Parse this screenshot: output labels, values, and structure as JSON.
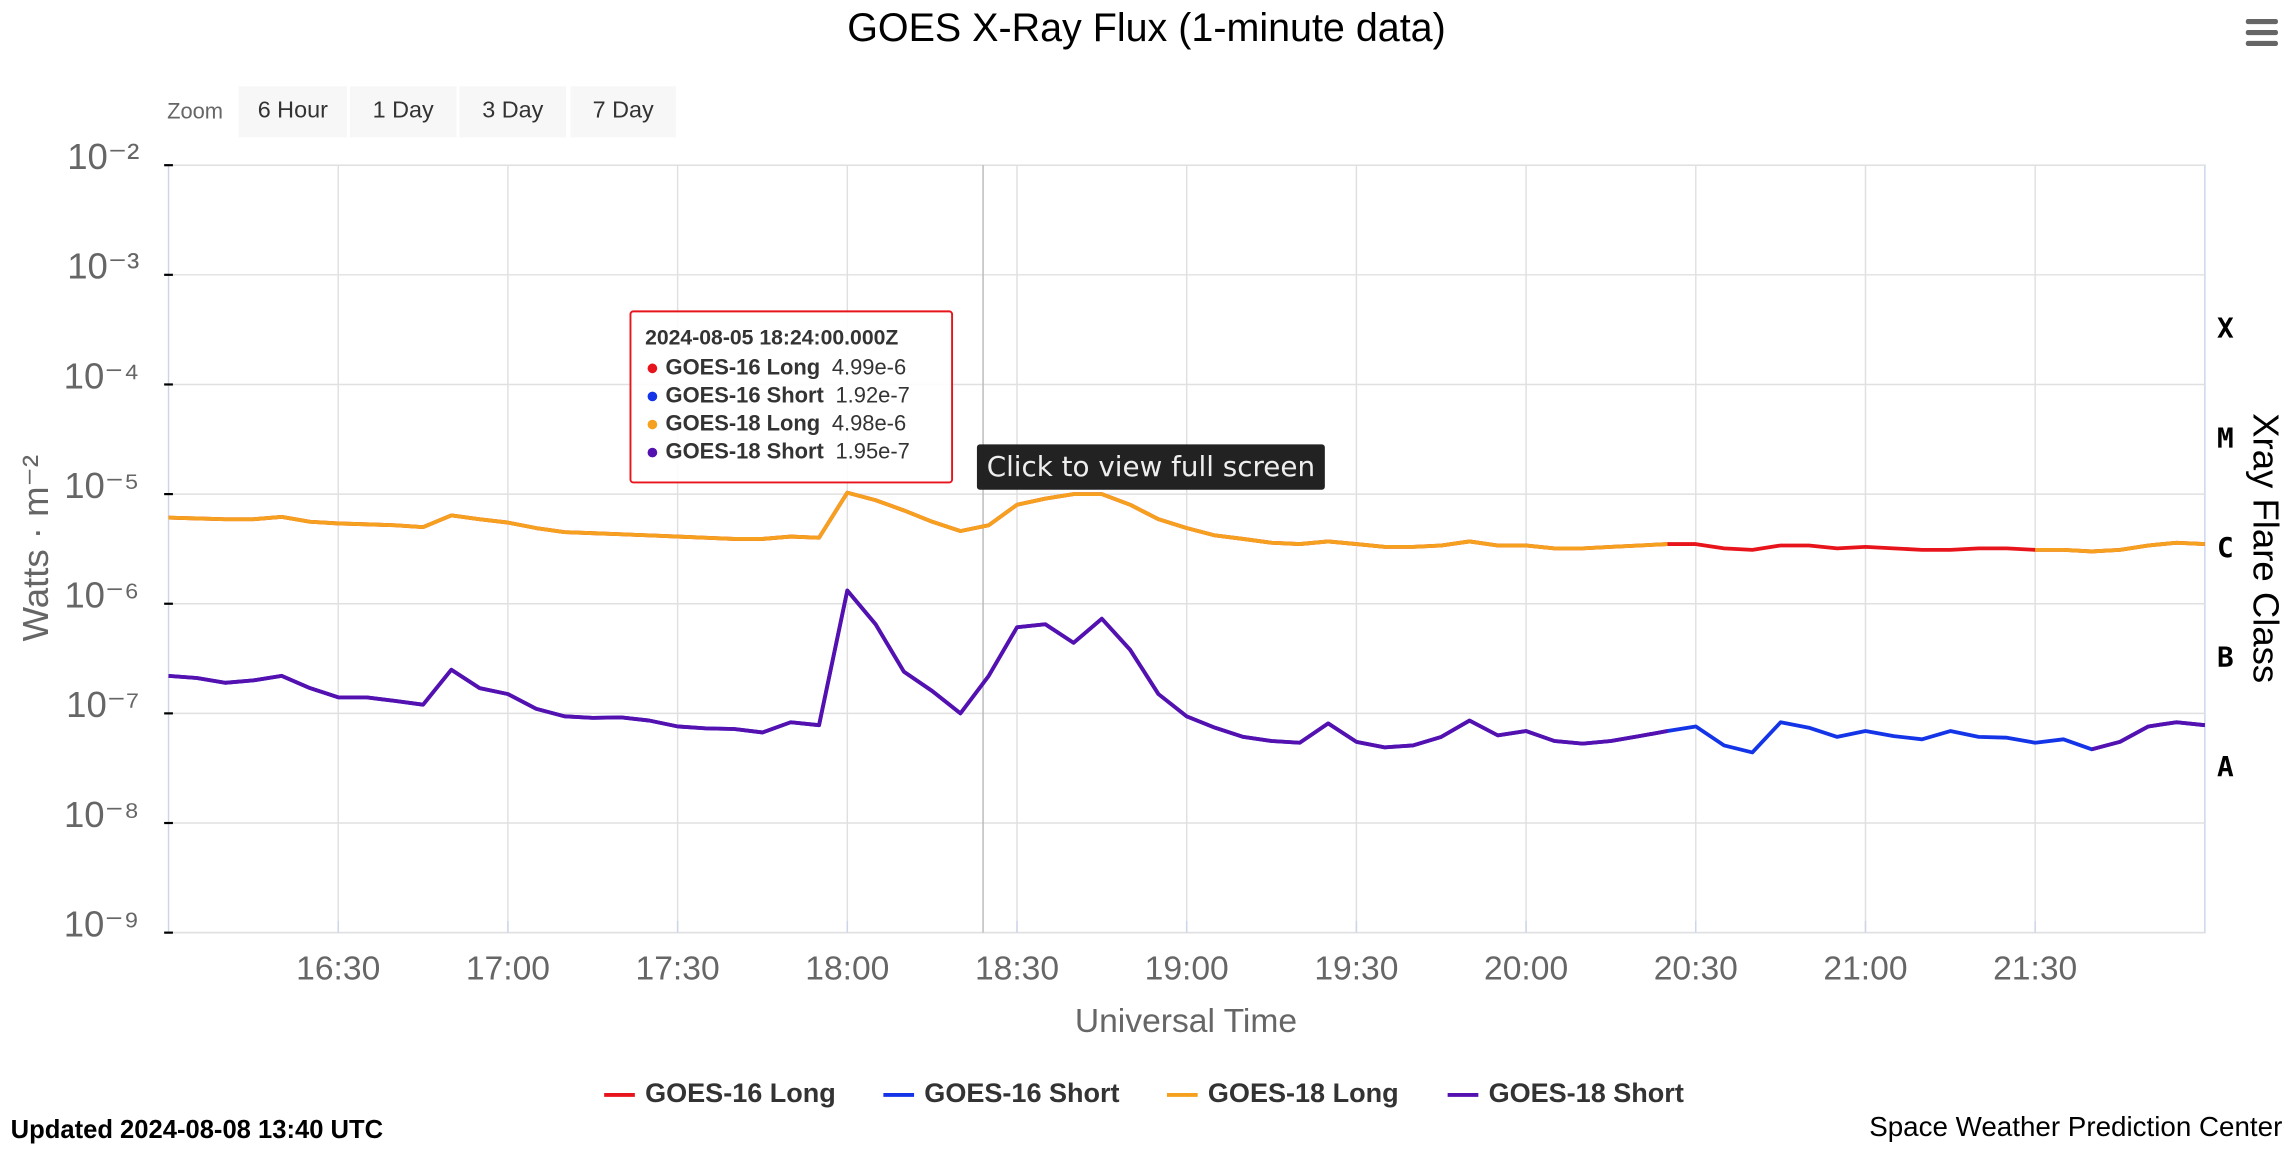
{
  "chart_data": {
    "type": "line",
    "title": "GOES X-Ray Flux (1-minute data)",
    "x_label": "Universal Time",
    "y_label": "Watts · m⁻²",
    "y2_label": "Xray Flare Class",
    "log_y": true,
    "grid": true,
    "xlim": [
      "16:00",
      "22:00"
    ],
    "xticks": [
      "16:30",
      "17:00",
      "17:30",
      "18:00",
      "18:30",
      "19:00",
      "19:30",
      "20:00",
      "20:30",
      "21:00",
      "21:30"
    ],
    "ylim": [
      1e-09,
      0.01
    ],
    "yticks": [
      {
        "value": 1e-09,
        "label": "10⁻⁹"
      },
      {
        "value": 1e-08,
        "label": "10⁻⁸"
      },
      {
        "value": 1e-07,
        "label": "10⁻⁷"
      },
      {
        "value": 1e-06,
        "label": "10⁻⁶"
      },
      {
        "value": 1e-05,
        "label": "10⁻⁵"
      },
      {
        "value": 0.0001,
        "label": "10⁻⁴"
      },
      {
        "value": 0.001,
        "label": "10⁻³"
      },
      {
        "value": 0.01,
        "label": "10⁻²"
      }
    ],
    "y2lim": [
      1e-09,
      0.01
    ],
    "y2ticks": [
      {
        "value": 1e-08,
        "label": "A"
      },
      {
        "value": 1e-07,
        "label": "B"
      },
      {
        "value": 1e-06,
        "label": "C"
      },
      {
        "value": 1e-05,
        "label": "M"
      },
      {
        "value": 0.0001,
        "label": "X"
      }
    ],
    "x": [
      "16:00",
      "16:05",
      "16:10",
      "16:15",
      "16:20",
      "16:25",
      "16:30",
      "16:35",
      "16:40",
      "16:45",
      "16:50",
      "16:55",
      "17:00",
      "17:05",
      "17:10",
      "17:15",
      "17:20",
      "17:25",
      "17:30",
      "17:35",
      "17:40",
      "17:45",
      "17:50",
      "17:55",
      "18:00",
      "18:05",
      "18:10",
      "18:15",
      "18:20",
      "18:25",
      "18:30",
      "18:35",
      "18:40",
      "18:45",
      "18:50",
      "18:55",
      "19:00",
      "19:05",
      "19:10",
      "19:15",
      "19:20",
      "19:25",
      "19:30",
      "19:35",
      "19:40",
      "19:45",
      "19:50",
      "19:55",
      "20:00",
      "20:05",
      "20:10",
      "20:15",
      "20:20",
      "20:25",
      "20:30",
      "20:35",
      "20:40",
      "20:45",
      "20:50",
      "20:55",
      "21:00",
      "21:05",
      "21:10",
      "21:15",
      "21:20",
      "21:25",
      "21:30",
      "21:35",
      "21:40",
      "21:45",
      "21:50",
      "21:55",
      "22:00"
    ],
    "series": [
      {
        "name": "GOES-16 Long",
        "color": "#e8141b",
        "values": [
          6.1e-06,
          6e-06,
          5.9e-06,
          5.9e-06,
          6.2e-06,
          5.6e-06,
          5.4e-06,
          5.3e-06,
          5.2e-06,
          5e-06,
          6.4e-06,
          5.9e-06,
          5.5e-06,
          4.9e-06,
          4.5e-06,
          4.4e-06,
          4.3e-06,
          4.2e-06,
          4.1e-06,
          4e-06,
          3.9e-06,
          3.9e-06,
          4.1e-06,
          4e-06,
          1.03e-05,
          8.8e-06,
          7.1e-06,
          5.6e-06,
          4.6e-06,
          5.2e-06,
          8e-06,
          9.1e-06,
          1e-05,
          1e-05,
          8e-06,
          5.9e-06,
          4.9e-06,
          4.2e-06,
          3.9e-06,
          3.6e-06,
          3.5e-06,
          3.7e-06,
          3.5e-06,
          3.3e-06,
          3.3e-06,
          3.4e-06,
          3.7e-06,
          3.4e-06,
          3.4e-06,
          3.2e-06,
          3.2e-06,
          3.3e-06,
          3.4e-06,
          3.5e-06,
          3.5e-06,
          3.2e-06,
          3.1e-06,
          3.4e-06,
          3.4e-06,
          3.2e-06,
          3.3e-06,
          3.2e-06,
          3.1e-06,
          3.1e-06,
          3.2e-06,
          3.2e-06,
          3.1e-06,
          3.1e-06,
          3e-06,
          3.1e-06,
          3.4e-06,
          3.6e-06,
          3.5e-06
        ]
      },
      {
        "name": "GOES-16 Short",
        "color": "#1434e8",
        "values": [
          2.2e-07,
          2.1e-07,
          1.9e-07,
          2e-07,
          2.2e-07,
          1.7e-07,
          1.4e-07,
          1.4e-07,
          1.3e-07,
          1.2e-07,
          2.5e-07,
          1.7e-07,
          1.5e-07,
          1.1e-07,
          9.4e-08,
          9.1e-08,
          9.2e-08,
          8.6e-08,
          7.6e-08,
          7.3e-08,
          7.2e-08,
          6.7e-08,
          8.3e-08,
          7.8e-08,
          1.32e-06,
          6.5e-07,
          2.4e-07,
          1.6e-07,
          1e-07,
          2.2e-07,
          6.1e-07,
          6.5e-07,
          4.4e-07,
          7.3e-07,
          3.8e-07,
          1.5e-07,
          9.4e-08,
          7.4e-08,
          6.1e-08,
          5.6e-08,
          5.4e-08,
          8.1e-08,
          5.5e-08,
          4.9e-08,
          5.1e-08,
          6.1e-08,
          8.6e-08,
          6.3e-08,
          6.9e-08,
          5.6e-08,
          5.3e-08,
          5.6e-08,
          6.2e-08,
          6.9e-08,
          7.6e-08,
          5.1e-08,
          4.4e-08,
          8.3e-08,
          7.4e-08,
          6.1e-08,
          6.9e-08,
          6.2e-08,
          5.8e-08,
          6.9e-08,
          6.1e-08,
          6e-08,
          5.4e-08,
          5.8e-08,
          4.7e-08,
          5.5e-08,
          7.6e-08,
          8.3e-08,
          7.8e-08
        ]
      },
      {
        "name": "GOES-18 Long",
        "color": "#f5a01f",
        "values": [
          6.1e-06,
          6e-06,
          5.9e-06,
          5.9e-06,
          6.2e-06,
          5.6e-06,
          5.4e-06,
          5.3e-06,
          5.2e-06,
          5e-06,
          6.4e-06,
          5.9e-06,
          5.5e-06,
          4.9e-06,
          4.5e-06,
          4.4e-06,
          4.3e-06,
          4.2e-06,
          4.1e-06,
          4e-06,
          3.9e-06,
          3.9e-06,
          4.1e-06,
          4e-06,
          1.03e-05,
          8.8e-06,
          7.1e-06,
          5.6e-06,
          4.6e-06,
          5.2e-06,
          8e-06,
          9.1e-06,
          1e-05,
          1e-05,
          8e-06,
          5.9e-06,
          4.9e-06,
          4.2e-06,
          3.9e-06,
          3.6e-06,
          3.5e-06,
          3.7e-06,
          3.5e-06,
          3.3e-06,
          3.3e-06,
          3.4e-06,
          3.7e-06,
          3.4e-06,
          3.4e-06,
          3.2e-06,
          3.2e-06,
          3.3e-06,
          3.4e-06,
          3.5e-06,
          null,
          null,
          null,
          null,
          null,
          null,
          null,
          null,
          null,
          null,
          null,
          null,
          3.1e-06,
          3.1e-06,
          3e-06,
          3.1e-06,
          3.4e-06,
          3.6e-06,
          3.5e-06
        ]
      },
      {
        "name": "GOES-18 Short",
        "color": "#5510b0",
        "values": [
          2.2e-07,
          2.1e-07,
          1.9e-07,
          2e-07,
          2.2e-07,
          1.7e-07,
          1.4e-07,
          1.4e-07,
          1.3e-07,
          1.2e-07,
          2.5e-07,
          1.7e-07,
          1.5e-07,
          1.1e-07,
          9.4e-08,
          9.1e-08,
          9.2e-08,
          8.6e-08,
          7.6e-08,
          7.3e-08,
          7.2e-08,
          6.7e-08,
          8.3e-08,
          7.8e-08,
          1.32e-06,
          6.5e-07,
          2.4e-07,
          1.6e-07,
          1e-07,
          2.2e-07,
          6.1e-07,
          6.5e-07,
          4.4e-07,
          7.3e-07,
          3.8e-07,
          1.5e-07,
          9.4e-08,
          7.4e-08,
          6.1e-08,
          5.6e-08,
          5.4e-08,
          8.1e-08,
          5.5e-08,
          4.9e-08,
          5.1e-08,
          6.1e-08,
          8.6e-08,
          6.3e-08,
          6.9e-08,
          5.6e-08,
          5.3e-08,
          5.6e-08,
          6.2e-08,
          6.9e-08,
          null,
          null,
          null,
          null,
          null,
          null,
          null,
          null,
          null,
          null,
          null,
          null,
          null,
          null,
          4.7e-08,
          5.5e-08,
          7.6e-08,
          8.3e-08,
          7.8e-08
        ]
      }
    ],
    "tooltip": {
      "title": "2024-08-05 18:24:00.000Z",
      "items": [
        {
          "value": 4.99e-06,
          "label": "4.99e-6"
        },
        {
          "value": 1.92e-07,
          "label": "1.92e-7"
        },
        {
          "value": 4.98e-06,
          "label": "4.98e-6"
        },
        {
          "value": 1.95e-07,
          "label": "1.95e-7"
        }
      ]
    }
  },
  "zoom": {
    "label": "Zoom",
    "buttons": [
      "6 Hour",
      "1 Day",
      "3 Day",
      "7 Day"
    ]
  },
  "fullscreen_hint": "Click to view full screen",
  "footer": {
    "updated": "Updated 2024-08-08 13:40 UTC",
    "credit": "Space Weather Prediction Center"
  }
}
